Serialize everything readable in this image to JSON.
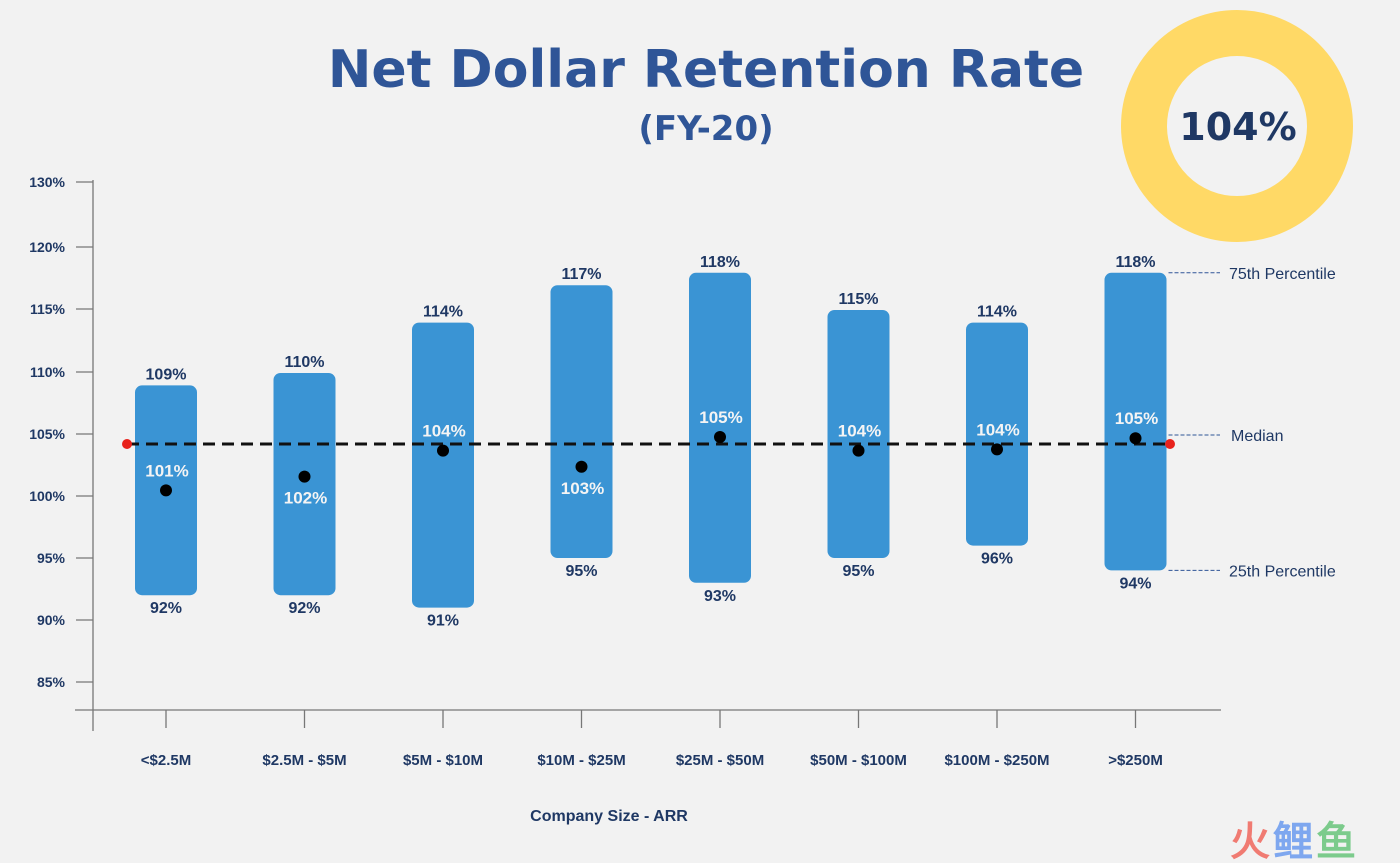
{
  "chart_data": {
    "type": "range-bar",
    "title": "Net Dollar Retention Rate",
    "subtitle": "(FY-20)",
    "xlabel": "Company Size - ARR",
    "ylabel": "",
    "y_ticks": [
      "130%",
      "120%",
      "115%",
      "110%",
      "105%",
      "100%",
      "95%",
      "90%",
      "85%"
    ],
    "y_tick_values": [
      130,
      120,
      115,
      110,
      105,
      100,
      95,
      90,
      85
    ],
    "ylim": [
      83,
      130
    ],
    "categories": [
      "<$2.5M",
      "$2.5M - $5M",
      "$5M - $10M",
      "$10M - $25M",
      "$25M - $50M",
      "$50M - $100M",
      "$100M - $250M",
      ">$250M"
    ],
    "series": [
      {
        "name": "75th Percentile",
        "values": [
          109,
          110,
          114,
          117,
          118,
          115,
          114,
          118
        ],
        "labels": [
          "109%",
          "110%",
          "114%",
          "117%",
          "118%",
          "115%",
          "114%",
          "118%"
        ]
      },
      {
        "name": "Median",
        "values": [
          101,
          102,
          104,
          103,
          105,
          104,
          104,
          105
        ],
        "labels": [
          "101%",
          "102%",
          "104%",
          "103%",
          "105%",
          "104%",
          "104%",
          "105%"
        ]
      },
      {
        "name": "25th Percentile",
        "values": [
          92,
          92,
          91,
          95,
          93,
          95,
          96,
          94
        ],
        "labels": [
          "92%",
          "92%",
          "91%",
          "95%",
          "93%",
          "95%",
          "96%",
          "94%"
        ]
      }
    ],
    "median_plot_values": [
      100.7,
      101.8,
      103.9,
      102.6,
      105.0,
      103.9,
      104.0,
      104.9
    ],
    "median_label_position": [
      "above",
      "below",
      "above",
      "below",
      "above",
      "above",
      "above",
      "above"
    ],
    "overall_median": {
      "value": 104,
      "label": "104%",
      "line_style": "dashed"
    },
    "legend": {
      "placement": "right",
      "entries": [
        "75th Percentile",
        "Median",
        "25th Percentile"
      ]
    },
    "grid": false,
    "colors": {
      "bar": "#3a94d4",
      "median_dot": "#000000",
      "overall_line": "#111111",
      "overall_endpoints": "#e8221c",
      "title": "#2f5597",
      "text": "#1f3864",
      "badge_ring": "#ffd966"
    }
  },
  "badge": {
    "value": "104%",
    "fraction_filled": 1.0
  },
  "watermark": {
    "text": "火鲤鱼",
    "colors": [
      "#f07b72",
      "#7ea7ef",
      "#7ccb8c"
    ]
  }
}
